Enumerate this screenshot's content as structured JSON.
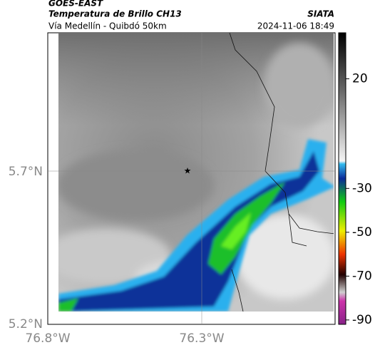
{
  "header": {
    "satellite": "GOES-EAST",
    "product": "Temperatura de Brillo CH13",
    "region": "Vía Medellín - Quibdó 50km",
    "source": "SIATA",
    "timestamp": "2024-11-06 18:49"
  },
  "map": {
    "lat_labels": [
      "5.7°N",
      "5.2°N"
    ],
    "lon_labels": [
      "76.8°W",
      "76.3°W"
    ]
  },
  "colorbar": {
    "lim": [
      -92,
      41
    ],
    "ticks": [
      20,
      -30,
      -50,
      -70,
      -90
    ]
  }
}
